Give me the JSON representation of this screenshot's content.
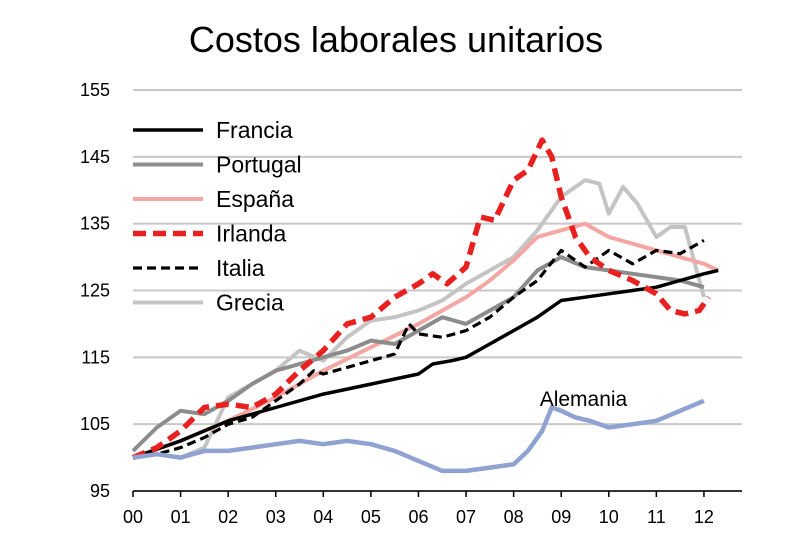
{
  "chart_data": {
    "type": "line",
    "title": "Costos laborales unitarios",
    "xlabel": "",
    "ylabel": "",
    "x_tick_labels": [
      "00",
      "01",
      "02",
      "03",
      "04",
      "05",
      "06",
      "07",
      "08",
      "09",
      "10",
      "11",
      "12"
    ],
    "x_ticks": [
      0,
      1,
      2,
      3,
      4,
      5,
      6,
      7,
      8,
      9,
      10,
      11,
      12
    ],
    "xlim": [
      0,
      12.8
    ],
    "y_ticks": [
      95,
      105,
      115,
      125,
      135,
      145,
      155
    ],
    "ylim": [
      95,
      155
    ],
    "grid": "horizontal",
    "legend_position": "top-left",
    "annotation": {
      "text": "Alemania",
      "x": 8.8,
      "y": 108
    },
    "colors": {
      "francia": "#000000",
      "portugal": "#8c8c8c",
      "espana": "#f4a6a3",
      "irlanda": "#e8201f",
      "italia": "#000000",
      "grecia": "#c4c4c4",
      "alemania": "#8fa2d2",
      "gridline": "#c8c8c8"
    },
    "series": [
      {
        "name": "Francia",
        "key": "francia",
        "dash": "solid",
        "x": [
          0,
          1,
          2,
          3,
          4,
          5,
          6,
          6.3,
          6.7,
          7,
          7.5,
          8,
          8.5,
          9,
          9.5,
          10,
          10.5,
          11,
          11.5,
          12,
          12.3
        ],
        "y": [
          100,
          102.5,
          105.5,
          107.5,
          109.5,
          111,
          112.5,
          114,
          114.5,
          115,
          117,
          119,
          121,
          123.5,
          124,
          124.5,
          125,
          125.5,
          126.5,
          127.5,
          128
        ]
      },
      {
        "name": "Portugal",
        "key": "portugal",
        "dash": "solid",
        "x": [
          0,
          0.5,
          1,
          1.5,
          2,
          2.5,
          3,
          3.5,
          4,
          4.5,
          5,
          5.5,
          6,
          6.5,
          7,
          7.5,
          8,
          8.5,
          9,
          9.5,
          10,
          10.5,
          11,
          11.5,
          12
        ],
        "y": [
          101,
          104.5,
          107,
          106.5,
          108.5,
          111,
          113,
          114,
          115,
          116,
          117.5,
          117,
          119,
          121,
          120,
          122,
          124,
          128,
          130,
          128.5,
          128,
          127.5,
          127,
          126.5,
          125.5
        ]
      },
      {
        "name": "España",
        "key": "espana",
        "dash": "solid",
        "x": [
          0,
          1,
          2,
          3,
          4,
          5,
          6,
          7,
          7.5,
          8,
          8.5,
          9,
          9.5,
          10,
          10.5,
          11,
          11.5,
          12,
          12.3
        ],
        "y": [
          100,
          102.5,
          105.5,
          109,
          113,
          116.5,
          120,
          124,
          126.5,
          129.5,
          133,
          134,
          135,
          133,
          132,
          131,
          130,
          129,
          128
        ]
      },
      {
        "name": "Irlanda",
        "key": "irlanda",
        "dash": "dash",
        "x": [
          0,
          0.5,
          1,
          1.5,
          2,
          2.5,
          3,
          3.5,
          4,
          4.5,
          5,
          5.5,
          6,
          6.3,
          6.6,
          7,
          7.3,
          7.6,
          8,
          8.3,
          8.6,
          8.8,
          9,
          9.3,
          9.6,
          10,
          10.5,
          11,
          11.3,
          11.6,
          11.9,
          12.1
        ],
        "y": [
          100,
          101.5,
          104,
          107.5,
          108,
          107.5,
          109.5,
          113,
          116,
          120,
          121,
          124,
          126,
          127.5,
          126,
          128.5,
          136,
          135.5,
          141.5,
          143,
          147.5,
          145,
          139,
          133,
          130,
          128,
          126.5,
          124.5,
          122,
          121.5,
          122,
          124
        ]
      },
      {
        "name": "Italia",
        "key": "italia",
        "dash": "dash",
        "x": [
          0,
          0.5,
          1,
          1.5,
          2,
          2.5,
          3,
          3.5,
          3.8,
          4,
          4.5,
          5,
          5.5,
          5.8,
          6,
          6.5,
          7,
          7.5,
          8,
          8.5,
          9,
          9.5,
          10,
          10.5,
          11,
          11.5,
          12
        ],
        "y": [
          100,
          100.5,
          101.5,
          103,
          105,
          106,
          108.5,
          111,
          113,
          112.5,
          113.5,
          114.5,
          115.5,
          120,
          118.5,
          118,
          119,
          121,
          124,
          126.5,
          131,
          128.5,
          131,
          129,
          131,
          130.5,
          132.5
        ]
      },
      {
        "name": "Grecia",
        "key": "grecia",
        "dash": "solid",
        "x": [
          0,
          0.5,
          1,
          1.5,
          2,
          2.5,
          3,
          3.5,
          4,
          4.5,
          5,
          5.5,
          6,
          6.5,
          7,
          7.5,
          8,
          8.5,
          9,
          9.5,
          9.8,
          10,
          10.3,
          10.6,
          11,
          11.3,
          11.6,
          12
        ],
        "y": [
          100,
          100.5,
          100,
          101.5,
          109,
          111,
          113,
          116,
          114.5,
          118,
          120.5,
          121,
          122,
          123.5,
          126,
          128,
          130,
          134,
          139,
          141.5,
          141,
          136.5,
          140.5,
          138,
          133,
          134.5,
          134.5,
          124
        ]
      },
      {
        "name": "Alemania",
        "key": "alemania",
        "dash": "solid",
        "x": [
          0,
          0.5,
          1,
          1.5,
          2,
          2.5,
          3,
          3.5,
          4,
          4.5,
          5,
          5.5,
          6,
          6.5,
          7,
          7.5,
          8,
          8.3,
          8.6,
          8.8,
          9,
          9.3,
          9.6,
          10,
          10.5,
          11,
          11.5,
          12
        ],
        "y": [
          100,
          100.5,
          100,
          101,
          101,
          101.5,
          102,
          102.5,
          102,
          102.5,
          102,
          101,
          99.5,
          98,
          98,
          98.5,
          99,
          101,
          104,
          107.5,
          107,
          106,
          105.5,
          104.5,
          105,
          105.5,
          107,
          108.5
        ]
      }
    ]
  }
}
